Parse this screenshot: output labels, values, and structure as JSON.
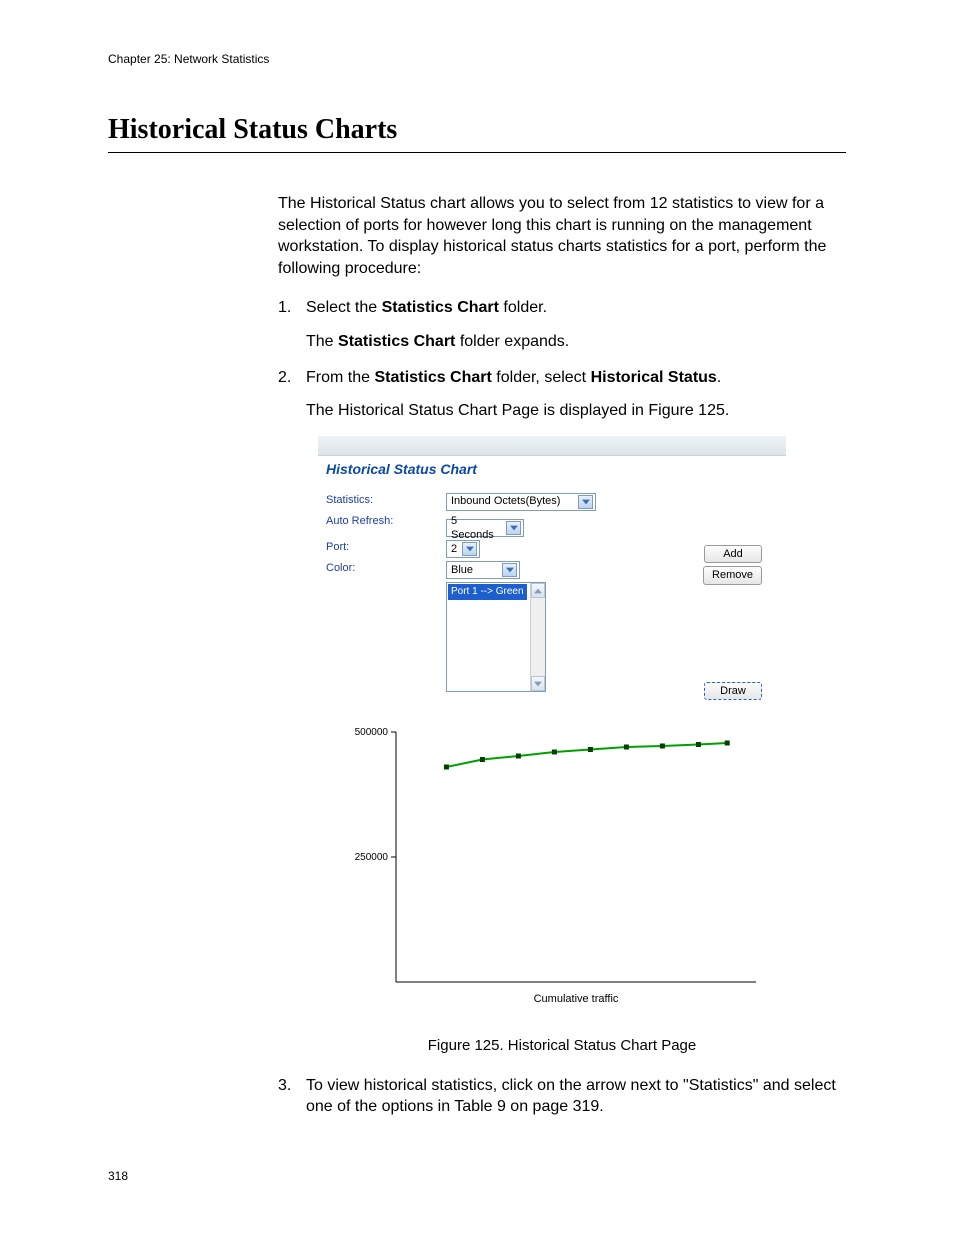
{
  "header": {
    "chapter": "Chapter 25: Network Statistics"
  },
  "section": {
    "title": "Historical Status Charts"
  },
  "body": {
    "intro": "The Historical Status chart allows you to select from 12 statistics to view for a selection of ports for however long this chart is running on the management workstation. To display historical status charts statistics for a port, perform the following procedure:",
    "step1": {
      "num": "1.",
      "text_pre": "Select the ",
      "bold": "Statistics Chart",
      "text_post": " folder.",
      "after_pre": "The ",
      "after_bold": "Statistics Chart",
      "after_post": " folder expands."
    },
    "step2": {
      "num": "2.",
      "text_pre": "From the ",
      "bold1": "Statistics Chart",
      "text_mid": " folder, select ",
      "bold2": "Historical Status",
      "text_post": ".",
      "after": "The Historical Status Chart Page is displayed in Figure 125."
    },
    "figure_caption": "Figure 125. Historical Status Chart Page",
    "step3": {
      "num": "3.",
      "text": "To view historical statistics, click on the arrow next to \"Statistics\" and select one of the options in Table 9 on page 319."
    }
  },
  "panel": {
    "title": "Historical Status Chart",
    "labels": {
      "statistics": "Statistics:",
      "auto_refresh": "Auto Refresh:",
      "port": "Port:",
      "color": "Color:"
    },
    "values": {
      "statistics": "Inbound Octets(Bytes)",
      "auto_refresh": "5 Seconds",
      "port": "2",
      "color": "Blue",
      "list_item": "Port 1 --> Green"
    },
    "buttons": {
      "add": "Add",
      "remove": "Remove",
      "draw": "Draw"
    }
  },
  "chart": {
    "ylim": [
      0,
      500000
    ],
    "yticks": [
      250000,
      500000
    ],
    "ytick_labels": [
      "250000",
      "500000"
    ],
    "label_fontsize": 10,
    "axis_color": "#000000",
    "line_color": "#00a000",
    "marker_color": "#004000",
    "marker_size": 5,
    "line_width": 2,
    "background_color": "#ffffff",
    "xlabel": "Cumulative traffic",
    "points": [
      {
        "x": 14,
        "y": 430000
      },
      {
        "x": 24,
        "y": 445000
      },
      {
        "x": 34,
        "y": 452000
      },
      {
        "x": 44,
        "y": 460000
      },
      {
        "x": 54,
        "y": 465000
      },
      {
        "x": 64,
        "y": 470000
      },
      {
        "x": 74,
        "y": 472000
      },
      {
        "x": 84,
        "y": 475000
      },
      {
        "x": 92,
        "y": 478000
      }
    ]
  },
  "page_number": "318"
}
